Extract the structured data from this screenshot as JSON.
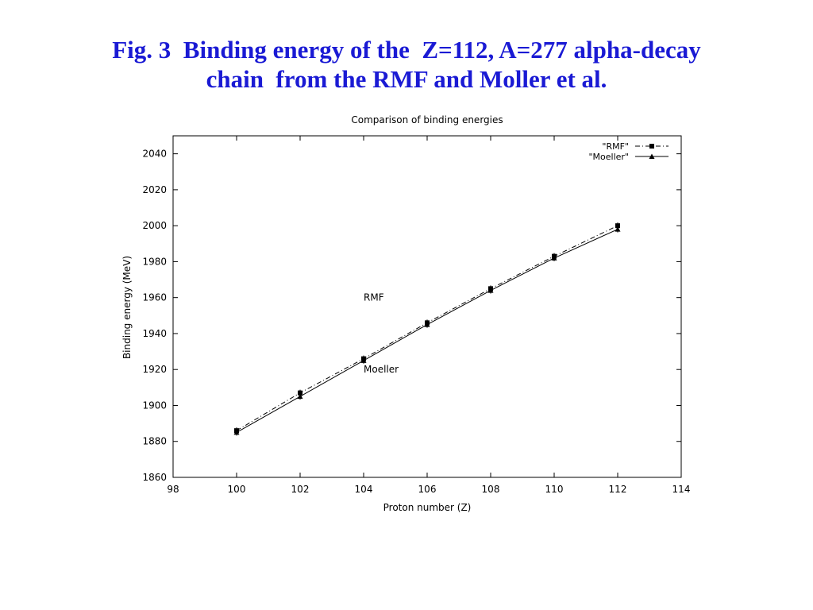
{
  "slide": {
    "title_line1": "Fig. 3  Binding energy of the  Z=112, A=277 alpha-decay",
    "title_line2": "chain  from the RMF and Moller et al."
  },
  "colors": {
    "title": "#1a1ad4",
    "axes": "#000000",
    "series": "#000000"
  },
  "chart_data": {
    "type": "line",
    "title": "Comparison of binding energies",
    "xlabel": "Proton number (Z)",
    "ylabel": "Binding energy (MeV)",
    "xlim": [
      98,
      114
    ],
    "ylim": [
      1860,
      2050
    ],
    "xticks": [
      98,
      100,
      102,
      104,
      106,
      108,
      110,
      112,
      114
    ],
    "yticks": [
      1860,
      1880,
      1900,
      1920,
      1940,
      1960,
      1980,
      2000,
      2020,
      2040
    ],
    "grid": false,
    "legend_position": "top-right",
    "series": [
      {
        "name": "\"RMF\"",
        "marker": "square",
        "line_style": "dash-dot",
        "x": [
          100,
          102,
          104,
          106,
          108,
          110,
          112
        ],
        "y": [
          1886,
          1907,
          1926,
          1946,
          1965,
          1983,
          2000
        ]
      },
      {
        "name": "\"Moeller\"",
        "marker": "triangle",
        "line_style": "solid",
        "x": [
          100,
          102,
          104,
          106,
          108,
          110,
          112
        ],
        "y": [
          1885,
          1905,
          1925,
          1945,
          1964,
          1982,
          1998
        ]
      }
    ],
    "annotations": [
      {
        "text": "RMF",
        "x": 105,
        "y": 1960
      },
      {
        "text": "Moeller",
        "x": 105,
        "y": 1920
      }
    ]
  }
}
